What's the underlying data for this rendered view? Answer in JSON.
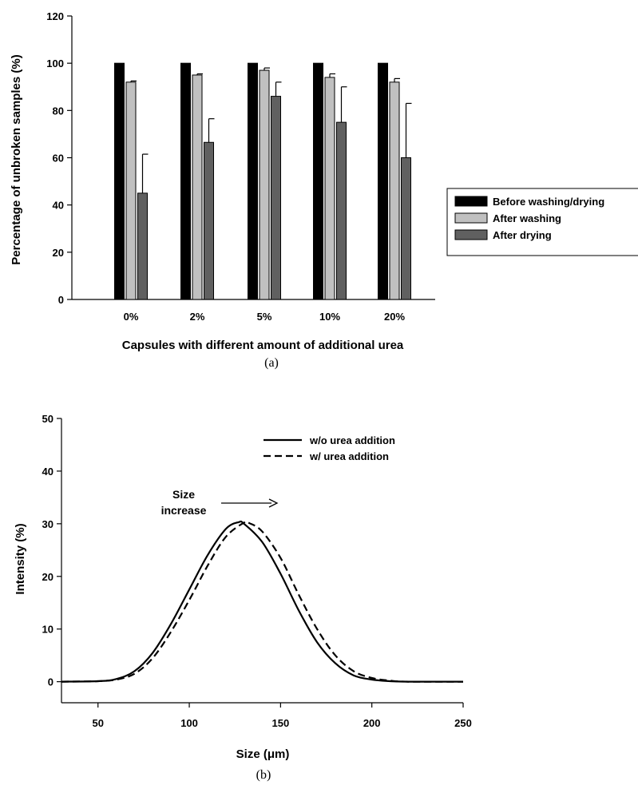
{
  "chart_data": [
    {
      "type": "bar",
      "caption": "(a)",
      "categories": [
        "0%",
        "2%",
        "5%",
        "10%",
        "20%"
      ],
      "series": [
        {
          "name": "Before washing/drying",
          "values": [
            100,
            100,
            100,
            100,
            100
          ],
          "errors": [
            0,
            0,
            0,
            0,
            0
          ],
          "color": "#000000"
        },
        {
          "name": "After washing",
          "values": [
            92,
            95,
            97,
            94,
            92
          ],
          "errors": [
            0.5,
            0.5,
            1,
            1.5,
            1.5
          ],
          "color": "#c0c0c0"
        },
        {
          "name": "After drying",
          "values": [
            45,
            66.5,
            86,
            75,
            60
          ],
          "errors": [
            16.5,
            10,
            6,
            15,
            23
          ],
          "color": "#606060"
        }
      ],
      "xlabel": "Capsules with different amount of additional urea",
      "ylabel": "Percentage of unbroken samples (%)",
      "ylim": [
        0,
        120
      ],
      "yticks": [
        0,
        20,
        40,
        60,
        80,
        100,
        120
      ],
      "grid": false,
      "legend_position": "right"
    },
    {
      "type": "line",
      "caption": "(b)",
      "series": [
        {
          "name": "w/o urea addition",
          "line_style": "solid",
          "x": [
            30,
            50,
            60,
            70,
            80,
            90,
            100,
            110,
            120,
            127,
            130,
            140,
            150,
            160,
            170,
            180,
            190,
            200,
            210,
            220,
            250
          ],
          "y": [
            0,
            0.1,
            0.5,
            2,
            5.5,
            11,
            17.5,
            24,
            29,
            30.3,
            30,
            26.5,
            20.5,
            13.5,
            7.5,
            3.5,
            1.2,
            0.4,
            0.1,
            0,
            0
          ]
        },
        {
          "name": "w/ urea addition",
          "line_style": "dashed",
          "x": [
            30,
            50,
            60,
            70,
            80,
            90,
            100,
            110,
            120,
            130,
            133,
            140,
            150,
            160,
            170,
            180,
            190,
            200,
            210,
            220,
            250
          ],
          "y": [
            0,
            0.1,
            0.4,
            1.5,
            4.5,
            9.5,
            15.5,
            22,
            27.5,
            30.2,
            30.1,
            28.5,
            23.5,
            16.5,
            10,
            5,
            2,
            0.7,
            0.2,
            0,
            0
          ]
        }
      ],
      "annotation": {
        "text_line1": "Size",
        "text_line2": "increase"
      },
      "xlabel": "Size (μm)",
      "ylabel": "Intensity (%)",
      "xlim": [
        30,
        250
      ],
      "xticks": [
        50,
        100,
        150,
        200,
        250
      ],
      "ylim": [
        -4,
        50
      ],
      "yticks": [
        0,
        10,
        20,
        30,
        40,
        50
      ],
      "grid": false,
      "legend_position": "top-right"
    }
  ]
}
